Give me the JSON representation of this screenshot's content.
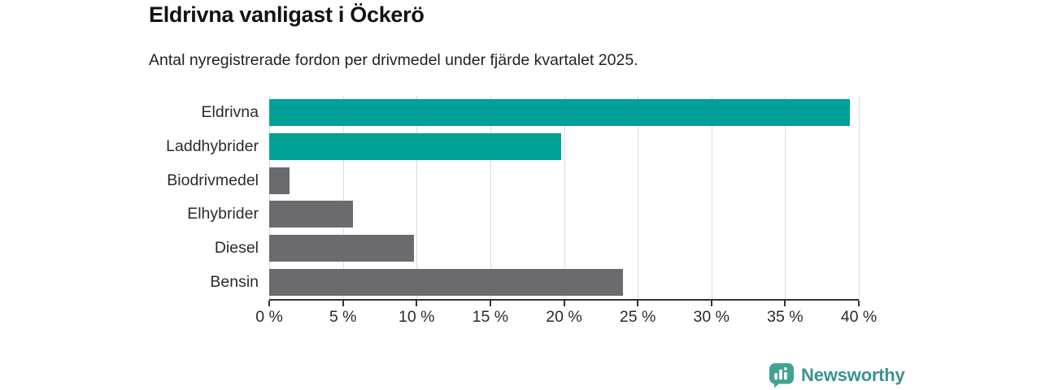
{
  "title": "Eldrivna vanligast i Öckerö",
  "subtitle": "Antal nyregistrerade fordon per drivmedel under fjärde kvartalet 2025.",
  "chart_data": {
    "type": "bar",
    "orientation": "horizontal",
    "title": "Eldrivna vanligast i Öckerö",
    "subtitle": "Antal nyregistrerade fordon per drivmedel under fjärde kvartalet 2025.",
    "categories": [
      "Eldrivna",
      "Laddhybrider",
      "Biodrivmedel",
      "Elhybrider",
      "Diesel",
      "Bensin"
    ],
    "values": [
      39.4,
      19.8,
      1.4,
      5.7,
      9.8,
      24.0
    ],
    "unit": "%",
    "bar_colors": [
      "#00a096",
      "#00a096",
      "#6b6b6f",
      "#6b6b6f",
      "#6b6b6f",
      "#6b6b6f"
    ],
    "highlight_color": "#00a096",
    "default_color": "#6b6b6f",
    "xlabel": "",
    "ylabel": "",
    "xlim": [
      0,
      40
    ],
    "x_ticks": [
      "0 %",
      "5 %",
      "10 %",
      "15 %",
      "20 %",
      "25 %",
      "30 %",
      "35 %",
      "40 %"
    ],
    "grid": true,
    "grid_color": "#dcdcdc",
    "axis_color": "#333333",
    "legend": "none"
  },
  "branding": {
    "logo_text": "Newsworthy",
    "logo_text_color": "#3a938e",
    "logo_icon": "bar-chart-bubble-icon",
    "logo_icon_color": "#43a392"
  }
}
